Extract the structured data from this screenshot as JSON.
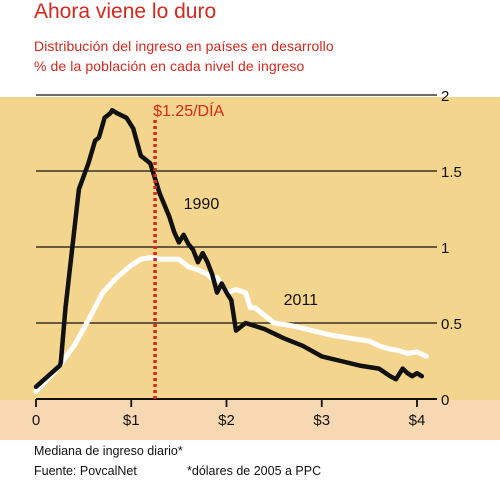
{
  "title": "Ahora viene lo duro",
  "subtitle_1": "Distribución del ingreso en países en desarrollo",
  "subtitle_2": "% de la población en cada nivel de ingreso",
  "footer": {
    "xlabel": "Mediana de ingreso diario*",
    "source": "Fuente: PovcalNet",
    "note": "*dólares de 2005 a PPC"
  },
  "colors": {
    "accent_red": "#d8271c",
    "plot_band": "#f4d58d",
    "bottom_band": "#f7d8b2",
    "series_1990": "#111111",
    "series_2011": "#ffffff"
  },
  "chart_data": {
    "type": "line",
    "title": "Ahora viene lo duro",
    "xlabel": "Mediana de ingreso diario*",
    "ylabel": "% de la población en cada nivel de ingreso",
    "xlim": [
      0,
      4.1
    ],
    "ylim": [
      0,
      2
    ],
    "x_ticks": [
      "0",
      "$1",
      "$2",
      "$3",
      "$4"
    ],
    "x_tick_values": [
      0,
      1,
      2,
      3,
      4
    ],
    "y_ticks": [
      "0",
      "0.5",
      "1",
      "1.5",
      "2"
    ],
    "y_tick_values": [
      0,
      0.5,
      1,
      1.5,
      2
    ],
    "grid": "horizontal",
    "reference_line": {
      "x": 1.25,
      "label": "$1.25/DÍA"
    },
    "series": [
      {
        "name": "1990",
        "x": [
          0,
          0.25,
          0.26,
          0.31,
          0.45,
          0.55,
          0.62,
          0.66,
          0.72,
          0.78,
          0.8,
          0.85,
          0.95,
          1.02,
          1.1,
          1.2,
          1.3,
          1.4,
          1.45,
          1.5,
          1.55,
          1.6,
          1.65,
          1.7,
          1.75,
          1.8,
          1.85,
          1.9,
          1.95,
          2.0,
          2.05,
          2.1,
          2.2,
          2.4,
          2.6,
          2.8,
          3.0,
          3.2,
          3.4,
          3.6,
          3.72,
          3.78,
          3.85,
          3.9,
          3.95,
          4.0,
          4.05
        ],
        "values": [
          0.08,
          0.22,
          0.24,
          0.6,
          1.38,
          1.55,
          1.7,
          1.72,
          1.85,
          1.88,
          1.9,
          1.88,
          1.85,
          1.78,
          1.6,
          1.55,
          1.35,
          1.2,
          1.1,
          1.03,
          1.08,
          1.02,
          0.98,
          0.9,
          0.96,
          0.9,
          0.82,
          0.7,
          0.76,
          0.7,
          0.65,
          0.45,
          0.5,
          0.46,
          0.4,
          0.35,
          0.28,
          0.25,
          0.22,
          0.2,
          0.15,
          0.13,
          0.2,
          0.17,
          0.15,
          0.17,
          0.15
        ]
      },
      {
        "name": "2011",
        "x": [
          0,
          0.2,
          0.4,
          0.55,
          0.7,
          0.85,
          1.0,
          1.1,
          1.2,
          1.3,
          1.5,
          1.6,
          1.7,
          1.8,
          1.85,
          1.9,
          1.95,
          2.0,
          2.1,
          2.2,
          2.25,
          2.3,
          2.5,
          2.7,
          2.9,
          3.1,
          3.3,
          3.5,
          3.6,
          3.7,
          3.8,
          3.9,
          4.0,
          4.1
        ],
        "values": [
          0.05,
          0.18,
          0.35,
          0.52,
          0.7,
          0.8,
          0.88,
          0.92,
          0.93,
          0.92,
          0.92,
          0.87,
          0.85,
          0.82,
          0.79,
          0.8,
          0.75,
          0.7,
          0.72,
          0.7,
          0.6,
          0.6,
          0.5,
          0.48,
          0.45,
          0.42,
          0.4,
          0.38,
          0.35,
          0.33,
          0.32,
          0.3,
          0.31,
          0.28
        ]
      }
    ],
    "annotations": [
      {
        "text": "1990",
        "x": 1.55,
        "y": 1.25
      },
      {
        "text": "2011",
        "x": 2.6,
        "y": 0.62
      }
    ]
  }
}
